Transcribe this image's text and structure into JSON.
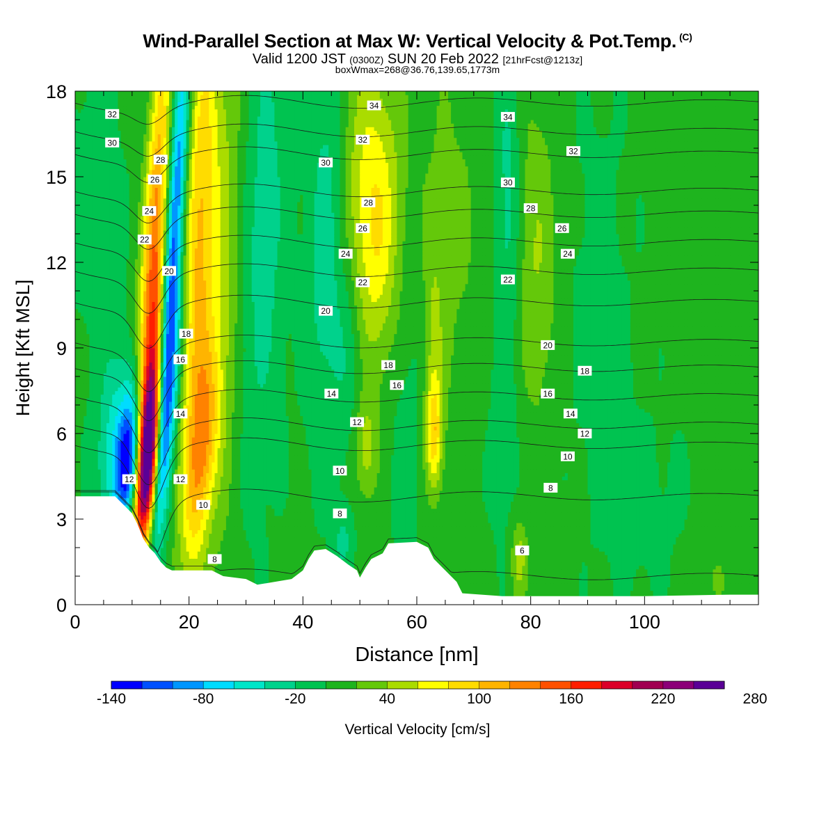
{
  "header": {
    "title": "Wind-Parallel Section at Max W: Vertical Velocity & Pot.Temp.",
    "title_mark": "(C)",
    "valid_prefix": "Valid 1200 JST",
    "valid_zulu": "(0300Z)",
    "valid_date": "SUN 20 Feb 2022",
    "forecast_tag": "[21hrFcst@1213z]",
    "box_info": "boxWmax=268@36.76,139.65,1773m"
  },
  "chart_data": {
    "type": "contour",
    "xlabel": "Distance [nm]",
    "ylabel": "Height [Kft MSL]",
    "xlim": [
      0,
      120
    ],
    "ylim": [
      0,
      18
    ],
    "xticks": [
      "0",
      "20",
      "40",
      "60",
      "80",
      "100"
    ],
    "yticks": [
      "0",
      "3",
      "6",
      "9",
      "12",
      "15",
      "18"
    ],
    "terrain": [
      [
        0,
        3.8
      ],
      [
        7,
        3.8
      ],
      [
        8.5,
        3.5
      ],
      [
        10,
        3.2
      ],
      [
        11,
        2.8
      ],
      [
        12,
        2.3
      ],
      [
        13,
        2.0
      ],
      [
        14,
        1.8
      ],
      [
        15,
        1.5
      ],
      [
        16,
        1.3
      ],
      [
        17,
        1.2
      ],
      [
        24,
        1.2
      ],
      [
        26,
        1.0
      ],
      [
        30,
        0.9
      ],
      [
        32,
        0.7
      ],
      [
        35,
        0.8
      ],
      [
        38,
        0.9
      ],
      [
        40,
        1.2
      ],
      [
        41,
        1.6
      ],
      [
        42,
        1.9
      ],
      [
        44,
        1.95
      ],
      [
        46,
        1.7
      ],
      [
        48,
        1.4
      ],
      [
        49.5,
        1.2
      ],
      [
        50,
        0.95
      ],
      [
        51,
        1.3
      ],
      [
        52,
        1.6
      ],
      [
        54,
        1.8
      ],
      [
        55,
        2.15
      ],
      [
        60,
        2.2
      ],
      [
        62,
        2.0
      ],
      [
        63,
        1.6
      ],
      [
        65,
        1.2
      ],
      [
        67,
        0.8
      ],
      [
        68,
        0.4
      ],
      [
        75,
        0.3
      ],
      [
        100,
        0.3
      ],
      [
        115,
        0.35
      ],
      [
        120,
        0.35
      ]
    ],
    "velocity_field": [
      {
        "x": 13,
        "z": 5.2,
        "sx": 1.3,
        "sz": 2.2,
        "tilt": 0.35,
        "w": 260
      },
      {
        "x": 13.5,
        "z": 8.5,
        "sx": 1.5,
        "sz": 4.5,
        "tilt": 0.45,
        "w": 110
      },
      {
        "x": 14,
        "z": 14,
        "sx": 1.4,
        "sz": 5.0,
        "tilt": 0.3,
        "w": 100
      },
      {
        "x": 17,
        "z": 12,
        "sx": 1.2,
        "sz": 6.0,
        "tilt": 0.3,
        "w": -150
      },
      {
        "x": 16,
        "z": 6.5,
        "sx": 1.4,
        "sz": 3.0,
        "tilt": 0.55,
        "w": -70
      },
      {
        "x": 9.5,
        "z": 4.8,
        "sx": 1.5,
        "sz": 1.4,
        "tilt": 0.3,
        "w": -130
      },
      {
        "x": 7,
        "z": 5.5,
        "sx": 2.2,
        "sz": 2.2,
        "tilt": 0.2,
        "w": -55
      },
      {
        "x": 10.5,
        "z": 7.0,
        "sx": 1.6,
        "sz": 1.5,
        "tilt": 0.3,
        "w": -45
      },
      {
        "x": 21.5,
        "z": 12,
        "sx": 2.0,
        "sz": 7.0,
        "tilt": 0.15,
        "w": 95
      },
      {
        "x": 22.5,
        "z": 5.5,
        "sx": 1.8,
        "sz": 2.5,
        "tilt": 0.4,
        "w": 80
      },
      {
        "x": 26,
        "z": 12,
        "sx": 2.5,
        "sz": 7.0,
        "tilt": 0.1,
        "w": 40
      },
      {
        "x": 33,
        "z": 13,
        "sx": 3.0,
        "sz": 6.0,
        "tilt": 0.15,
        "w": -35
      },
      {
        "x": 44,
        "z": 13,
        "sx": 2.2,
        "sz": 5.0,
        "tilt": 0.1,
        "w": -40
      },
      {
        "x": 48,
        "z": 9,
        "sx": 2.0,
        "sz": 3.0,
        "tilt": 0.0,
        "w": -25
      },
      {
        "x": 47,
        "z": 2.2,
        "sx": 1.2,
        "sz": 0.8,
        "tilt": 0.0,
        "w": -30
      },
      {
        "x": 52,
        "z": 15,
        "sx": 4.0,
        "sz": 3.5,
        "tilt": 0.0,
        "w": 50
      },
      {
        "x": 53,
        "z": 12,
        "sx": 3.0,
        "sz": 3.0,
        "tilt": 0.0,
        "w": 40
      },
      {
        "x": 51,
        "z": 5.5,
        "sx": 1.5,
        "sz": 1.3,
        "tilt": 0.0,
        "w": 45
      },
      {
        "x": 63,
        "z": 6.0,
        "sx": 1.0,
        "sz": 1.3,
        "tilt": 0.0,
        "w": 75
      },
      {
        "x": 63,
        "z": 9.0,
        "sx": 1.2,
        "sz": 3.0,
        "tilt": 0.0,
        "w": 30
      },
      {
        "x": 58,
        "z": 8,
        "sx": 2.5,
        "sz": 5.0,
        "tilt": 0.0,
        "w": -15
      },
      {
        "x": 76,
        "z": 14,
        "sx": 1.5,
        "sz": 4.0,
        "tilt": 0.0,
        "w": -35
      },
      {
        "x": 81,
        "z": 12,
        "sx": 2.5,
        "sz": 4.0,
        "tilt": 0.0,
        "w": 35
      },
      {
        "x": 78,
        "z": 1.6,
        "sx": 1.0,
        "sz": 1.0,
        "tilt": 0.0,
        "w": 45
      },
      {
        "x": 75,
        "z": 5.5,
        "sx": 2.0,
        "sz": 2.5,
        "tilt": 0.0,
        "w": -15
      },
      {
        "x": 92,
        "z": 11,
        "sx": 4.0,
        "sz": 5.0,
        "tilt": 0.0,
        "w": -12
      },
      {
        "x": 100,
        "z": 3.5,
        "sx": 6.0,
        "sz": 2.5,
        "tilt": 0.0,
        "w": -10
      },
      {
        "x": 66,
        "z": 13,
        "sx": 4.0,
        "sz": 5.0,
        "tilt": 0.0,
        "w": 20
      },
      {
        "x": 4,
        "z": 14,
        "sx": 3.0,
        "sz": 4.0,
        "tilt": 0.0,
        "w": -18
      },
      {
        "x": 112,
        "z": 1.0,
        "sx": 3.0,
        "sz": 1.2,
        "tilt": 0.0,
        "w": 15
      }
    ],
    "isentropes": {
      "levels": [
        6,
        8,
        10,
        12,
        14,
        16,
        18,
        20,
        22,
        24,
        26,
        28,
        30,
        32,
        34
      ],
      "base_height": [
        1.0,
        3.8,
        5.6,
        6.3,
        7.3,
        8.3,
        9.2,
        10.6,
        11.7,
        12.7,
        13.7,
        14.5,
        15.8,
        16.6,
        17.6
      ]
    },
    "contour_labels": [
      {
        "x": 6.5,
        "z": 17.2,
        "text": "32"
      },
      {
        "x": 6.5,
        "z": 16.2,
        "text": "30"
      },
      {
        "x": 15,
        "z": 15.6,
        "text": "28"
      },
      {
        "x": 14,
        "z": 14.9,
        "text": "26"
      },
      {
        "x": 13,
        "z": 13.8,
        "text": "24"
      },
      {
        "x": 12.2,
        "z": 12.8,
        "text": "22"
      },
      {
        "x": 16.5,
        "z": 11.7,
        "text": "20"
      },
      {
        "x": 19.5,
        "z": 9.5,
        "text": "18"
      },
      {
        "x": 18.5,
        "z": 8.6,
        "text": "16"
      },
      {
        "x": 18.5,
        "z": 6.7,
        "text": "14"
      },
      {
        "x": 9.5,
        "z": 4.4,
        "text": "12"
      },
      {
        "x": 18.5,
        "z": 4.4,
        "text": "12"
      },
      {
        "x": 22.5,
        "z": 3.5,
        "text": "10"
      },
      {
        "x": 24.5,
        "z": 1.6,
        "text": "8"
      },
      {
        "x": 52.5,
        "z": 17.5,
        "text": "34"
      },
      {
        "x": 50.5,
        "z": 16.3,
        "text": "32"
      },
      {
        "x": 44,
        "z": 15.5,
        "text": "30"
      },
      {
        "x": 51.5,
        "z": 14.1,
        "text": "28"
      },
      {
        "x": 50.5,
        "z": 13.2,
        "text": "26"
      },
      {
        "x": 47.5,
        "z": 12.3,
        "text": "24"
      },
      {
        "x": 50.5,
        "z": 11.3,
        "text": "22"
      },
      {
        "x": 44,
        "z": 10.3,
        "text": "20"
      },
      {
        "x": 55,
        "z": 8.4,
        "text": "18"
      },
      {
        "x": 56.5,
        "z": 7.7,
        "text": "16"
      },
      {
        "x": 45,
        "z": 7.4,
        "text": "14"
      },
      {
        "x": 49.5,
        "z": 6.4,
        "text": "12"
      },
      {
        "x": 46.5,
        "z": 4.7,
        "text": "10"
      },
      {
        "x": 46.5,
        "z": 3.2,
        "text": "8"
      },
      {
        "x": 76,
        "z": 17.1,
        "text": "34"
      },
      {
        "x": 87.5,
        "z": 15.9,
        "text": "32"
      },
      {
        "x": 76,
        "z": 14.8,
        "text": "30"
      },
      {
        "x": 80,
        "z": 13.9,
        "text": "28"
      },
      {
        "x": 85.5,
        "z": 13.2,
        "text": "26"
      },
      {
        "x": 86.5,
        "z": 12.3,
        "text": "24"
      },
      {
        "x": 76,
        "z": 11.4,
        "text": "22"
      },
      {
        "x": 83,
        "z": 9.1,
        "text": "20"
      },
      {
        "x": 89.5,
        "z": 8.2,
        "text": "18"
      },
      {
        "x": 83,
        "z": 7.4,
        "text": "16"
      },
      {
        "x": 87,
        "z": 6.7,
        "text": "14"
      },
      {
        "x": 89.5,
        "z": 6.0,
        "text": "12"
      },
      {
        "x": 86.5,
        "z": 5.2,
        "text": "10"
      },
      {
        "x": 83.5,
        "z": 4.1,
        "text": "8"
      },
      {
        "x": 78.5,
        "z": 1.9,
        "text": "6"
      }
    ],
    "colorbar": {
      "title": "Vertical Velocity [cm/s]",
      "min": -140,
      "step": 20,
      "labels": [
        "-140",
        "-80",
        "-20",
        "40",
        "100",
        "160",
        "220",
        "280"
      ],
      "colors": [
        "#0000ff",
        "#0050ff",
        "#0096ff",
        "#00dcff",
        "#00e6c8",
        "#00d28c",
        "#00c350",
        "#1eb41e",
        "#64c80a",
        "#aadc00",
        "#ffff00",
        "#ffdc00",
        "#ffb400",
        "#ff8200",
        "#ff5000",
        "#ff1e00",
        "#dc0028",
        "#a00050",
        "#8c0078",
        "#5a0096"
      ]
    }
  }
}
